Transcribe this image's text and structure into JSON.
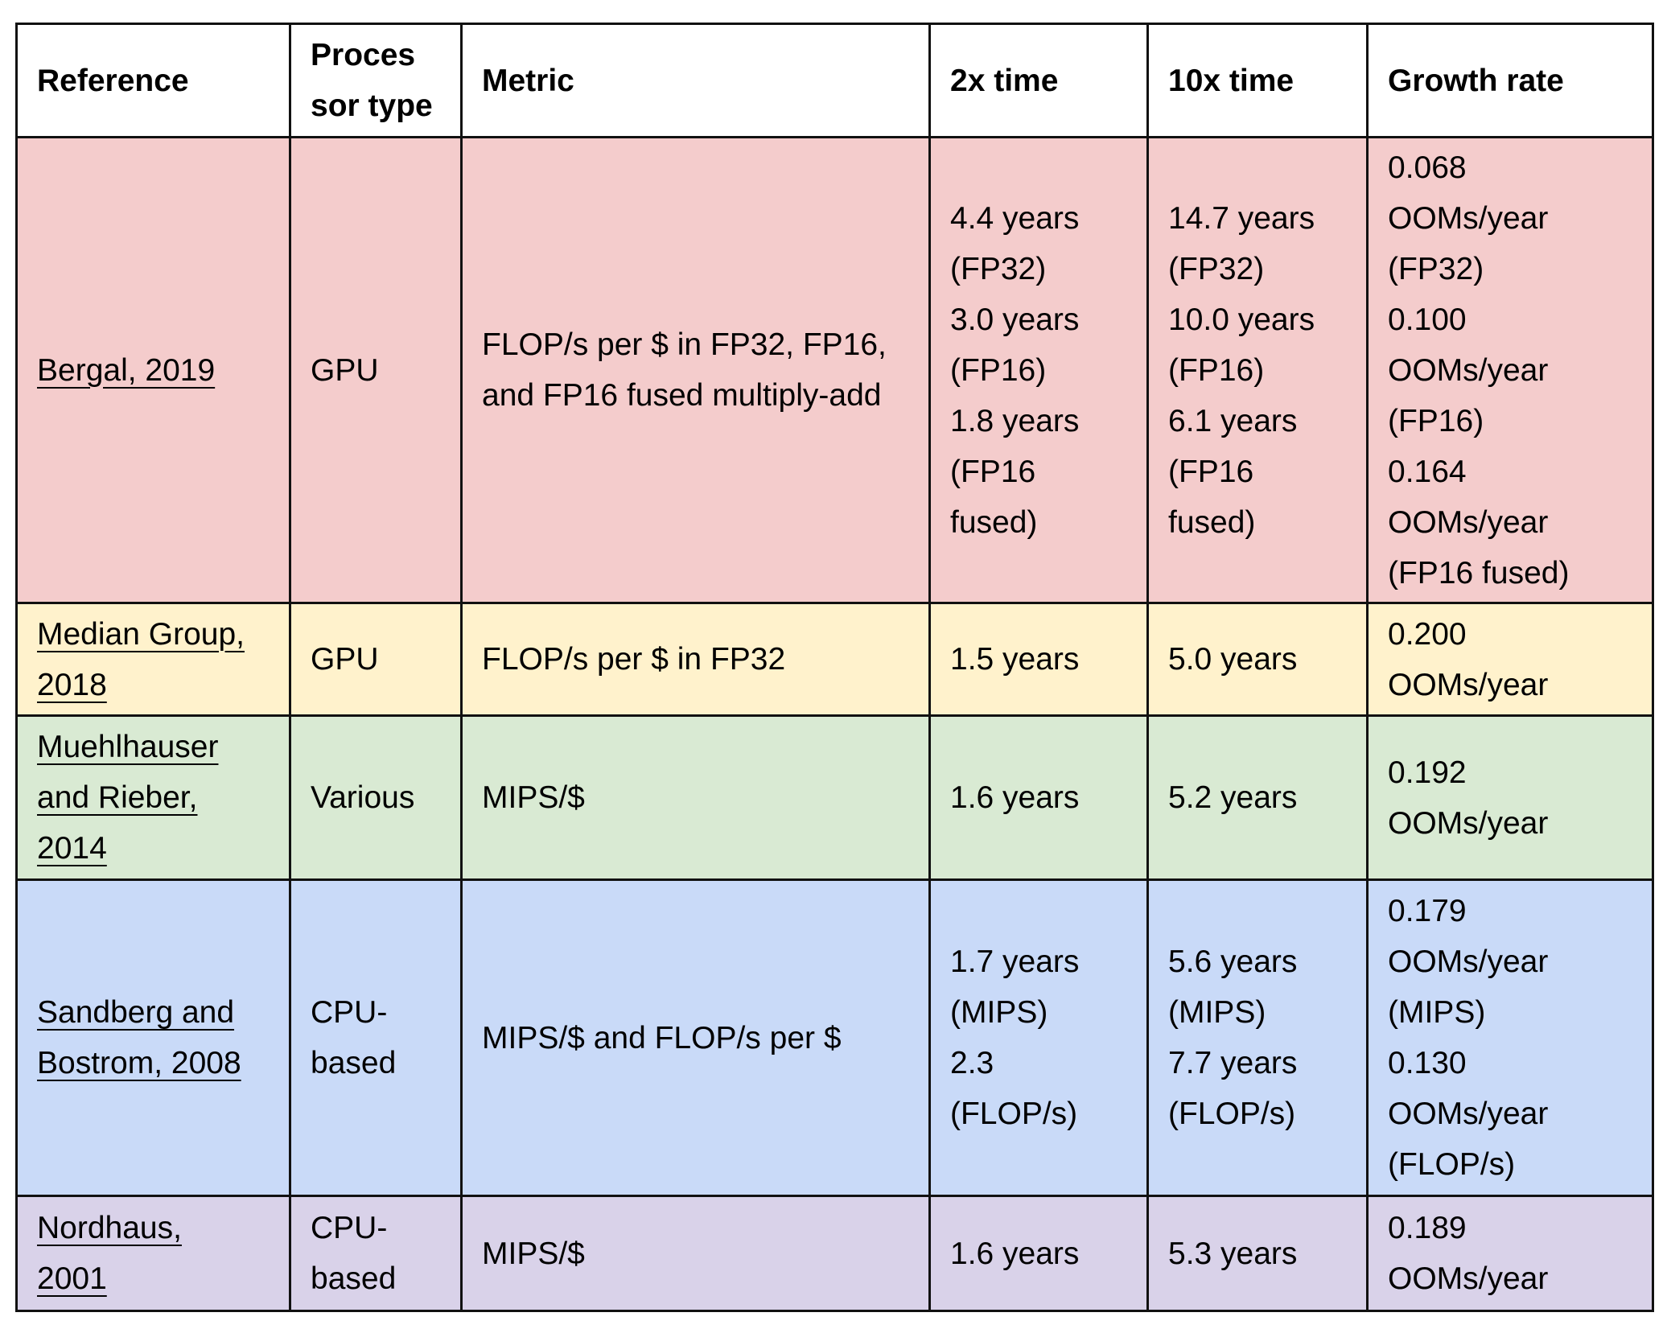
{
  "table": {
    "headers": [
      [
        "Reference"
      ],
      [
        "Proces",
        "sor type"
      ],
      [
        "Metric"
      ],
      [
        "2x time"
      ],
      [
        "10x time"
      ],
      [
        "Growth rate"
      ]
    ],
    "colors": {
      "row_1": "#f4cccc",
      "row_2": "#fff2cc",
      "row_3": "#d9ead3",
      "row_4": "#c9daf8",
      "row_5": "#d9d2e9",
      "border": "#111111"
    },
    "rows": [
      {
        "reference": [
          "Bergal, 2019"
        ],
        "processor_type": [
          "GPU"
        ],
        "metric": [
          "FLOP/s per $ in FP32, FP16,",
          "and FP16 fused multiply-add"
        ],
        "time_2x": [
          "4.4 years",
          "(FP32)",
          "3.0 years",
          "(FP16)",
          "1.8 years",
          "(FP16",
          "fused)"
        ],
        "time_10x": [
          "14.7 years",
          "(FP32)",
          "10.0 years",
          "(FP16)",
          "6.1 years",
          "(FP16",
          "fused)"
        ],
        "growth_rate": [
          "0.068",
          "OOMs/year",
          "(FP32)",
          "0.100",
          "OOMs/year",
          "(FP16)",
          "0.164",
          "OOMs/year",
          "(FP16 fused)"
        ]
      },
      {
        "reference": [
          "Median Group,",
          "2018"
        ],
        "processor_type": [
          "GPU"
        ],
        "metric": [
          "FLOP/s per $ in FP32"
        ],
        "time_2x": [
          "1.5 years"
        ],
        "time_10x": [
          "5.0 years"
        ],
        "growth_rate": [
          "0.200",
          "OOMs/year"
        ]
      },
      {
        "reference": [
          "Muehlhauser",
          "and Rieber,",
          "2014"
        ],
        "processor_type": [
          "Various"
        ],
        "metric": [
          "MIPS/$"
        ],
        "time_2x": [
          "1.6 years"
        ],
        "time_10x": [
          "5.2 years"
        ],
        "growth_rate": [
          "0.192",
          "OOMs/year"
        ]
      },
      {
        "reference": [
          "Sandberg and",
          "Bostrom, 2008"
        ],
        "processor_type": [
          "CPU-",
          "based"
        ],
        "metric": [
          "MIPS/$ and FLOP/s per $"
        ],
        "time_2x": [
          "1.7 years",
          "(MIPS)",
          "2.3",
          "(FLOP/s)"
        ],
        "time_10x": [
          "5.6 years",
          "(MIPS)",
          "7.7 years",
          "(FLOP/s)"
        ],
        "growth_rate": [
          "0.179",
          "OOMs/year",
          "(MIPS)",
          "0.130",
          "OOMs/year",
          "(FLOP/s)"
        ]
      },
      {
        "reference": [
          "Nordhaus,",
          "2001"
        ],
        "processor_type": [
          "CPU-",
          "based"
        ],
        "metric": [
          "MIPS/$"
        ],
        "time_2x": [
          "1.6 years"
        ],
        "time_10x": [
          "5.3 years"
        ],
        "growth_rate": [
          "0.189",
          "OOMs/year"
        ]
      }
    ]
  }
}
